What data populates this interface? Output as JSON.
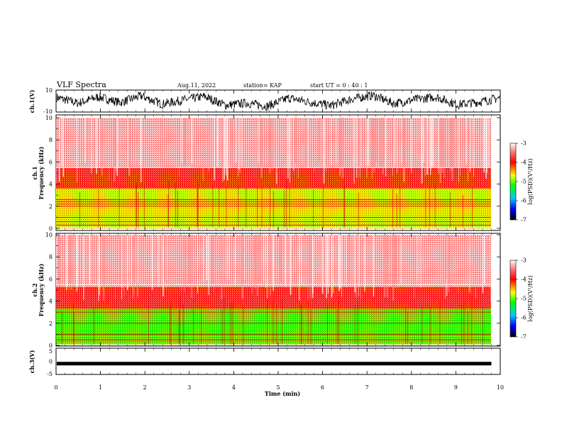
{
  "header": {
    "title": "VLF Spectra",
    "date": "Aug.11, 2022",
    "station": "station= KAP",
    "start": "start  UT =   0 : 40 : 1"
  },
  "chart_data": [
    {
      "type": "line",
      "panel": "ch1-waveform",
      "ylabel": "ch.1(V)",
      "ylim": [
        -10,
        10
      ],
      "yticks": [
        "10",
        "-10"
      ],
      "xlim": [
        0,
        10
      ],
      "series": [
        {
          "values": [
            3.5,
            -2.0,
            4.0,
            -1.5,
            5.0,
            -3.0,
            1.0,
            4.5,
            -4.0,
            -2.0,
            -5.0,
            3.0,
            -1.0,
            -4.5,
            2.0,
            5.5,
            -2.5,
            1.5,
            4.0,
            -3.5,
            -1.0,
            3.0
          ]
        }
      ],
      "color": "#000000"
    },
    {
      "type": "heatmap",
      "panel": "ch1-spectrogram",
      "ylabel": "ch.1\nFrequency (kHz)",
      "ylim": [
        0,
        10
      ],
      "yticks": [
        "0",
        "2",
        "4",
        "6",
        "8",
        "10"
      ],
      "xlim": [
        0,
        9.8
      ],
      "bands": [
        {
          "from": 0,
          "to": 3.6,
          "level": -4.7
        },
        {
          "from": 3.6,
          "to": 5.5,
          "level": -3.9
        },
        {
          "from": 5.5,
          "to": 10,
          "level": -3.3
        }
      ],
      "lines_khz": [
        0.3,
        0.6,
        1.0,
        2.0,
        2.2,
        2.4,
        2.6,
        5.5
      ],
      "colorbar": {
        "label": "log(PSD)(V²/Hz)",
        "range": [
          -7,
          -3
        ],
        "ticks": [
          "-3",
          "-4",
          "-5",
          "-6",
          "-7"
        ]
      }
    },
    {
      "type": "heatmap",
      "panel": "ch2-spectrogram",
      "ylabel": "ch.2\nFrequency (kHz)",
      "ylim": [
        0,
        10
      ],
      "yticks": [
        "0",
        "2",
        "4",
        "6",
        "8",
        "10"
      ],
      "xlim": [
        0,
        9.8
      ],
      "bands": [
        {
          "from": 0,
          "to": 3.3,
          "level": -5.2
        },
        {
          "from": 3.3,
          "to": 5.3,
          "level": -3.9
        },
        {
          "from": 5.3,
          "to": 10,
          "level": -3.3
        }
      ],
      "lines_khz": [
        0.5,
        1.0,
        2.0,
        3.0,
        5.5
      ],
      "colorbar": {
        "label": "log(PSD)(V²/Hz)",
        "range": [
          -7,
          -3
        ],
        "ticks": [
          "-3",
          "-4",
          "-5",
          "-6",
          "-7"
        ]
      }
    },
    {
      "type": "line",
      "panel": "ch3-waveform",
      "ylabel": "ch.3(V)",
      "ylim": [
        -5,
        5
      ],
      "yticks": [
        "5",
        "0",
        "-5"
      ],
      "xlim": [
        0,
        10
      ],
      "series": [
        {
          "values": [
            -1.0,
            -1.0
          ]
        }
      ],
      "color": "#000000"
    }
  ],
  "xaxis": {
    "label": "Time (min)",
    "ticks": [
      "0",
      "1",
      "2",
      "3",
      "4",
      "5",
      "6",
      "7",
      "8",
      "9",
      "10"
    ],
    "range": [
      0,
      10
    ]
  }
}
